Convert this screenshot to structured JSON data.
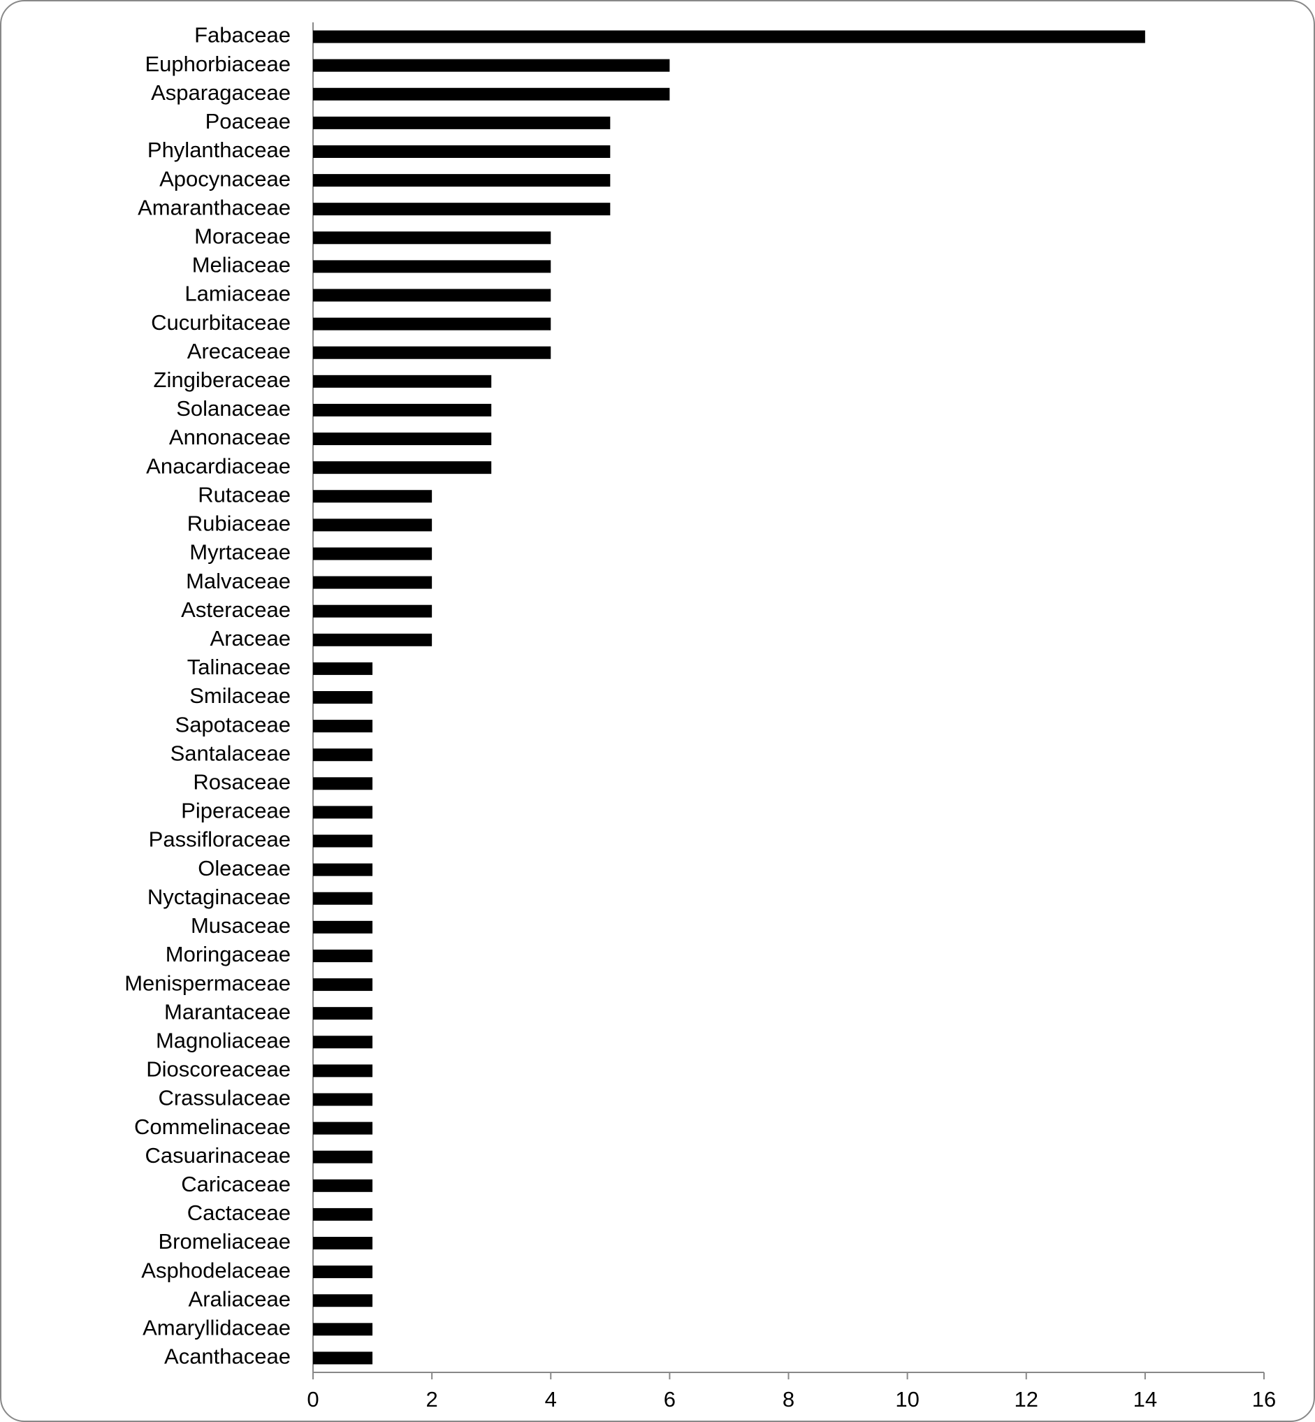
{
  "chart_data": {
    "type": "bar",
    "orientation": "horizontal",
    "categories": [
      "Fabaceae",
      "Euphorbiaceae",
      "Asparagaceae",
      "Poaceae",
      "Phylanthaceae",
      "Apocynaceae",
      "Amaranthaceae",
      "Moraceae",
      "Meliaceae",
      "Lamiaceae",
      "Cucurbitaceae",
      "Arecaceae",
      "Zingiberaceae",
      "Solanaceae",
      "Annonaceae",
      "Anacardiaceae",
      "Rutaceae",
      "Rubiaceae",
      "Myrtaceae",
      "Malvaceae",
      "Asteraceae",
      "Araceae",
      "Talinaceae",
      "Smilaceae",
      "Sapotaceae",
      "Santalaceae",
      "Rosaceae",
      "Piperaceae",
      "Passifloraceae",
      "Oleaceae",
      "Nyctaginaceae",
      "Musaceae",
      "Moringaceae",
      "Menispermaceae",
      "Marantaceae",
      "Magnoliaceae",
      "Dioscoreaceae",
      "Crassulaceae",
      "Commelinaceae",
      "Casuarinaceae",
      "Caricaceae",
      "Cactaceae",
      "Bromeliaceae",
      "Asphodelaceae",
      "Araliaceae",
      "Amaryllidaceae",
      "Acanthaceae"
    ],
    "values": [
      14,
      6,
      6,
      5,
      5,
      5,
      5,
      4,
      4,
      4,
      4,
      4,
      3,
      3,
      3,
      3,
      2,
      2,
      2,
      2,
      2,
      2,
      1,
      1,
      1,
      1,
      1,
      1,
      1,
      1,
      1,
      1,
      1,
      1,
      1,
      1,
      1,
      1,
      1,
      1,
      1,
      1,
      1,
      1,
      1,
      1,
      1
    ],
    "color": "#000000",
    "xlim": [
      0,
      16
    ],
    "xticks": [
      0,
      2,
      4,
      6,
      8,
      10,
      12,
      14,
      16
    ],
    "grid": false
  }
}
